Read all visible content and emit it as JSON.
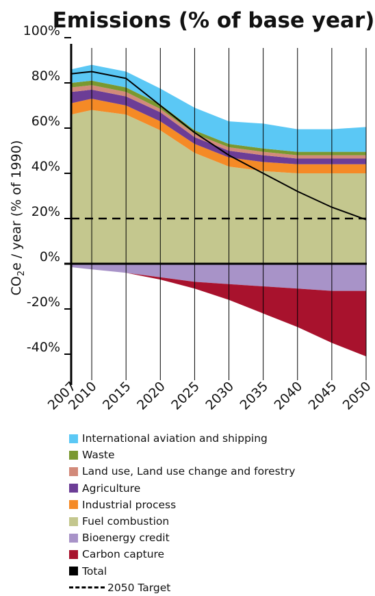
{
  "chart_data": {
    "type": "area",
    "title": "Emissions (% of base year)",
    "ylabel": "CO2e / year (% of 1990)",
    "ylabel_main": "CO",
    "ylabel_sub": "2",
    "ylabel_rest": "e / year (% of 1990)",
    "x": [
      2007,
      2010,
      2015,
      2020,
      2025,
      2030,
      2035,
      2040,
      2045,
      2050
    ],
    "x_tick_labels": [
      "2007",
      "2010",
      "2015",
      "2020",
      "2025",
      "2030",
      "2035",
      "2040",
      "2045",
      "2050"
    ],
    "ylim": [
      -50,
      100
    ],
    "y_ticks": [
      100,
      80,
      60,
      40,
      20,
      0,
      -20,
      -40
    ],
    "y_tick_labels": [
      "100%",
      "80%",
      "60%",
      "40%",
      "20%",
      "0%",
      "-20%",
      "-40%"
    ],
    "grid": "vertical",
    "stacking": "positive series stack upward from 0; negative series stack downward from 0",
    "positive_series": [
      {
        "name": "Fuel combustion",
        "color": "#c4c78e",
        "values": [
          66,
          68,
          66,
          59,
          49,
          43,
          41,
          40,
          40,
          40
        ]
      },
      {
        "name": "Industrial process",
        "color": "#f58a26",
        "values": [
          5,
          5,
          4,
          4,
          4,
          4,
          4,
          4,
          4,
          4
        ]
      },
      {
        "name": "Agriculture",
        "color": "#6c3d96",
        "values": [
          5,
          4,
          4,
          4,
          3,
          3,
          3,
          2.5,
          2.5,
          2.5
        ]
      },
      {
        "name": "Land use, Land use change and forestry",
        "color": "#d28a7a",
        "values": [
          2,
          2,
          2,
          1.5,
          1.5,
          1.5,
          1.5,
          1.5,
          1.5,
          1.5
        ]
      },
      {
        "name": "Waste",
        "color": "#7a9830",
        "values": [
          2,
          2,
          2,
          2,
          1.5,
          1.5,
          1.5,
          1.5,
          1.5,
          1.5
        ]
      },
      {
        "name": "International aviation and shipping",
        "color": "#5bc8f5",
        "values": [
          6,
          7,
          7,
          7,
          10,
          10,
          11,
          10,
          10,
          11
        ]
      }
    ],
    "negative_series": [
      {
        "name": "Bioenergy credit",
        "color": "#a893c8",
        "values": [
          -1.5,
          -2.5,
          -4,
          -6,
          -8,
          -9,
          -10,
          -11,
          -12,
          -12
        ]
      },
      {
        "name": "Carbon capture",
        "color": "#a8122d",
        "values": [
          0,
          0,
          0,
          -1,
          -3,
          -7,
          -12,
          -17,
          -23,
          -29
        ]
      }
    ],
    "total": {
      "name": "Total",
      "color": "#000000",
      "values": [
        84,
        85,
        82,
        70,
        58,
        48,
        40,
        32,
        25,
        19.5
      ]
    },
    "target": {
      "name": "2050 Target",
      "value": 20,
      "color": "#000000"
    }
  },
  "legend": [
    {
      "label": "International aviation and shipping",
      "color": "#5bc8f5",
      "kind": "box"
    },
    {
      "label": "Waste",
      "color": "#7a9830",
      "kind": "box"
    },
    {
      "label": "Land use, Land use change and forestry",
      "color": "#d28a7a",
      "kind": "box"
    },
    {
      "label": "Agriculture",
      "color": "#6c3d96",
      "kind": "box"
    },
    {
      "label": "Industrial process",
      "color": "#f58a26",
      "kind": "box"
    },
    {
      "label": "Fuel combustion",
      "color": "#c4c78e",
      "kind": "box"
    },
    {
      "label": "Bioenergy credit",
      "color": "#a893c8",
      "kind": "box"
    },
    {
      "label": "Carbon capture",
      "color": "#a8122d",
      "kind": "box"
    },
    {
      "label": "Total",
      "color": "#000000",
      "kind": "box"
    },
    {
      "label": "2050 Target",
      "color": "#000000",
      "kind": "dash"
    }
  ]
}
